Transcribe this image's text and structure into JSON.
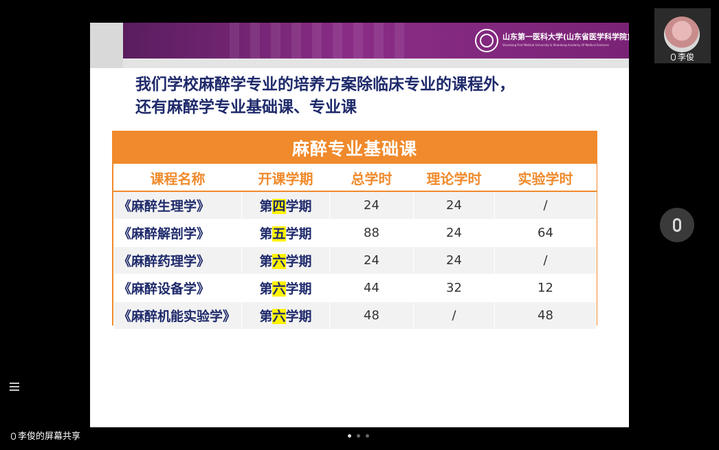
{
  "slide": {
    "logo_cn": "山东第一医科大学(山东省医学科学院)",
    "logo_en": "Shandong First Medical University & Shandong Academy Of Medical Sciences",
    "headline_line1": "我们学校麻醉学专业的培养方案除临床专业的课程外，",
    "headline_line2": "还有麻醉学专业基础课、专业课",
    "table_title": "麻醉专业基础课",
    "columns": [
      "课程名称",
      "开课学期",
      "总学时",
      "理论学时",
      "实验学时"
    ],
    "rows": [
      {
        "name": "《麻醉生理学》",
        "term_pre": "第",
        "term_num": "四",
        "term_post": "学期",
        "total": "24",
        "theory": "24",
        "lab": "/"
      },
      {
        "name": "《麻醉解剖学》",
        "term_pre": "第",
        "term_num": "五",
        "term_post": "学期",
        "total": "88",
        "theory": "24",
        "lab": "64"
      },
      {
        "name": "《麻醉药理学》",
        "term_pre": "第",
        "term_num": "六",
        "term_post": "学期",
        "total": "24",
        "theory": "24",
        "lab": "/"
      },
      {
        "name": "《麻醉设备学》",
        "term_pre": "第",
        "term_num": "六",
        "term_post": "学期",
        "total": "44",
        "theory": "32",
        "lab": "12"
      },
      {
        "name": "《麻醉机能实验学》",
        "term_pre": "第",
        "term_num": "六",
        "term_post": "学期",
        "total": "48",
        "theory": "/",
        "lab": "48"
      }
    ]
  },
  "participant": {
    "name": "李俊"
  },
  "share": {
    "label": "李俊的屏幕共享"
  },
  "icons": {
    "mic": "microphone-icon",
    "menu": "list-menu-icon"
  },
  "colors": {
    "accent": "#f08a2c",
    "banner": "#7a2376",
    "headline": "#1f2a6b",
    "highlight": "#fff200"
  }
}
